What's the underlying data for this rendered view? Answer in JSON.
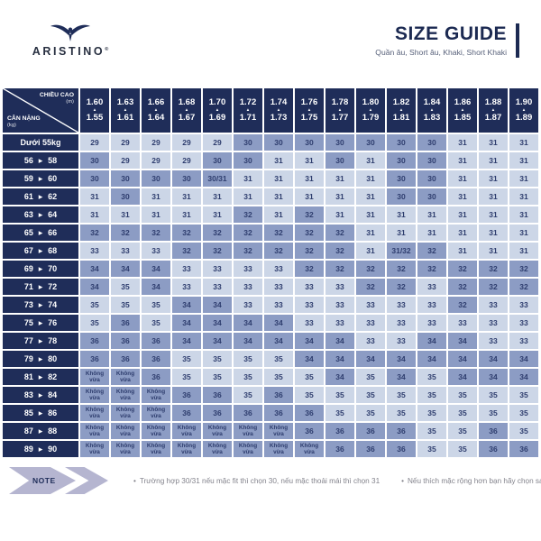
{
  "colors": {
    "navy": "#1f2d59",
    "cell_light": "#ccd6e7",
    "cell_dark": "#8c9cc4",
    "cell_text": "#2e3d6e",
    "note_chevron": "#b5b5d0",
    "note_text": "#83838c"
  },
  "header": {
    "brand": "ARISTINO",
    "reg": "®",
    "title": "SIZE GUIDE",
    "subtitle": "Quần âu, Short âu, Khaki, Short Khaki"
  },
  "table": {
    "corner": {
      "top_label": "CHIỀU CAO",
      "top_unit": "(m)",
      "bottom_label": "CÂN NẶNG",
      "bottom_unit": "(kg)"
    },
    "up_triangle": "▲",
    "range_triangle": "▶",
    "no_fit_text": "Không vừa",
    "height_columns": [
      {
        "tall": "1.60",
        "short": "1.55"
      },
      {
        "tall": "1.63",
        "short": "1.61"
      },
      {
        "tall": "1.66",
        "short": "1.64"
      },
      {
        "tall": "1.68",
        "short": "1.67"
      },
      {
        "tall": "1.70",
        "short": "1.69"
      },
      {
        "tall": "1.72",
        "short": "1.71"
      },
      {
        "tall": "1.74",
        "short": "1.73"
      },
      {
        "tall": "1.76",
        "short": "1.75"
      },
      {
        "tall": "1.78",
        "short": "1.77"
      },
      {
        "tall": "1.80",
        "short": "1.79"
      },
      {
        "tall": "1.82",
        "short": "1.81"
      },
      {
        "tall": "1.84",
        "short": "1.83"
      },
      {
        "tall": "1.86",
        "short": "1.85"
      },
      {
        "tall": "1.88",
        "short": "1.87"
      },
      {
        "tall": "1.90",
        "short": "1.89"
      }
    ],
    "rows": [
      {
        "weight": "Dưới 55kg",
        "values": [
          "29",
          "29",
          "29",
          "29",
          "29",
          "30",
          "30",
          "30",
          "30",
          "30",
          "30",
          "30",
          "31",
          "31",
          "31"
        ],
        "dark": [
          0,
          0,
          0,
          0,
          0,
          1,
          1,
          1,
          1,
          1,
          1,
          1,
          0,
          0,
          0
        ]
      },
      {
        "weight_from": "56",
        "weight_to": "58",
        "values": [
          "30",
          "29",
          "29",
          "29",
          "30",
          "30",
          "31",
          "31",
          "30",
          "31",
          "30",
          "30",
          "31",
          "31",
          "31"
        ],
        "dark": [
          1,
          0,
          0,
          0,
          1,
          1,
          0,
          0,
          1,
          0,
          1,
          1,
          0,
          0,
          0
        ]
      },
      {
        "weight_from": "59",
        "weight_to": "60",
        "values": [
          "30",
          "30",
          "30",
          "30",
          "30/31",
          "31",
          "31",
          "31",
          "31",
          "31",
          "30",
          "30",
          "31",
          "31",
          "31"
        ],
        "dark": [
          1,
          1,
          1,
          1,
          1,
          0,
          0,
          0,
          0,
          0,
          1,
          1,
          0,
          0,
          0
        ]
      },
      {
        "weight_from": "61",
        "weight_to": "62",
        "values": [
          "31",
          "30",
          "31",
          "31",
          "31",
          "31",
          "31",
          "31",
          "31",
          "31",
          "30",
          "30",
          "31",
          "31",
          "31"
        ],
        "dark": [
          0,
          1,
          0,
          0,
          0,
          0,
          0,
          0,
          0,
          0,
          1,
          1,
          0,
          0,
          0
        ]
      },
      {
        "weight_from": "63",
        "weight_to": "64",
        "values": [
          "31",
          "31",
          "31",
          "31",
          "31",
          "32",
          "31",
          "32",
          "31",
          "31",
          "31",
          "31",
          "31",
          "31",
          "31"
        ],
        "dark": [
          0,
          0,
          0,
          0,
          0,
          1,
          0,
          1,
          0,
          0,
          0,
          0,
          0,
          0,
          0
        ]
      },
      {
        "weight_from": "65",
        "weight_to": "66",
        "values": [
          "32",
          "32",
          "32",
          "32",
          "32",
          "32",
          "32",
          "32",
          "32",
          "31",
          "31",
          "31",
          "31",
          "31",
          "31"
        ],
        "dark": [
          1,
          1,
          1,
          1,
          1,
          1,
          1,
          1,
          1,
          0,
          0,
          0,
          0,
          0,
          0
        ]
      },
      {
        "weight_from": "67",
        "weight_to": "68",
        "values": [
          "33",
          "33",
          "33",
          "32",
          "32",
          "32",
          "32",
          "32",
          "32",
          "31",
          "31/32",
          "32",
          "31",
          "31",
          "31"
        ],
        "dark": [
          0,
          0,
          0,
          1,
          1,
          1,
          1,
          1,
          1,
          0,
          1,
          1,
          0,
          0,
          0
        ]
      },
      {
        "weight_from": "69",
        "weight_to": "70",
        "values": [
          "34",
          "34",
          "34",
          "33",
          "33",
          "33",
          "33",
          "32",
          "32",
          "32",
          "32",
          "32",
          "32",
          "32",
          "32"
        ],
        "dark": [
          1,
          1,
          1,
          0,
          0,
          0,
          0,
          1,
          1,
          1,
          1,
          1,
          1,
          1,
          1
        ]
      },
      {
        "weight_from": "71",
        "weight_to": "72",
        "values": [
          "34",
          "35",
          "34",
          "33",
          "33",
          "33",
          "33",
          "33",
          "33",
          "32",
          "32",
          "33",
          "32",
          "32",
          "32"
        ],
        "dark": [
          1,
          0,
          1,
          0,
          0,
          0,
          0,
          0,
          0,
          1,
          1,
          0,
          1,
          1,
          1
        ]
      },
      {
        "weight_from": "73",
        "weight_to": "74",
        "values": [
          "35",
          "35",
          "35",
          "34",
          "34",
          "33",
          "33",
          "33",
          "33",
          "33",
          "33",
          "33",
          "32",
          "33",
          "33"
        ],
        "dark": [
          0,
          0,
          0,
          1,
          1,
          0,
          0,
          0,
          0,
          0,
          0,
          0,
          1,
          0,
          0
        ]
      },
      {
        "weight_from": "75",
        "weight_to": "76",
        "values": [
          "35",
          "36",
          "35",
          "34",
          "34",
          "34",
          "34",
          "33",
          "33",
          "33",
          "33",
          "33",
          "33",
          "33",
          "33"
        ],
        "dark": [
          0,
          1,
          0,
          1,
          1,
          1,
          1,
          0,
          0,
          0,
          0,
          0,
          0,
          0,
          0
        ]
      },
      {
        "weight_from": "77",
        "weight_to": "78",
        "values": [
          "36",
          "36",
          "36",
          "34",
          "34",
          "34",
          "34",
          "34",
          "34",
          "33",
          "33",
          "34",
          "34",
          "33",
          "33"
        ],
        "dark": [
          1,
          1,
          1,
          1,
          1,
          1,
          1,
          1,
          1,
          0,
          0,
          1,
          1,
          0,
          0
        ]
      },
      {
        "weight_from": "79",
        "weight_to": "80",
        "values": [
          "36",
          "36",
          "36",
          "35",
          "35",
          "35",
          "35",
          "34",
          "34",
          "34",
          "34",
          "34",
          "34",
          "34",
          "34"
        ],
        "dark": [
          1,
          1,
          1,
          0,
          0,
          0,
          0,
          1,
          1,
          1,
          1,
          1,
          1,
          1,
          1
        ]
      },
      {
        "weight_from": "81",
        "weight_to": "82",
        "values": [
          "Không vừa",
          "Không vừa",
          "36",
          "35",
          "35",
          "35",
          "35",
          "35",
          "34",
          "35",
          "34",
          "35",
          "34",
          "34",
          "34"
        ],
        "dark": [
          1,
          1,
          1,
          0,
          0,
          0,
          0,
          0,
          1,
          0,
          1,
          0,
          1,
          1,
          1
        ]
      },
      {
        "weight_from": "83",
        "weight_to": "84",
        "values": [
          "Không vừa",
          "Không vừa",
          "Không vừa",
          "36",
          "36",
          "35",
          "36",
          "35",
          "35",
          "35",
          "35",
          "35",
          "35",
          "35",
          "35"
        ],
        "dark": [
          1,
          1,
          1,
          1,
          1,
          0,
          1,
          0,
          0,
          0,
          0,
          0,
          0,
          0,
          0
        ]
      },
      {
        "weight_from": "85",
        "weight_to": "86",
        "values": [
          "Không vừa",
          "Không vừa",
          "Không vừa",
          "36",
          "36",
          "36",
          "36",
          "36",
          "35",
          "35",
          "35",
          "35",
          "35",
          "35",
          "35"
        ],
        "dark": [
          1,
          1,
          1,
          1,
          1,
          1,
          1,
          1,
          0,
          0,
          0,
          0,
          0,
          0,
          0
        ]
      },
      {
        "weight_from": "87",
        "weight_to": "88",
        "values": [
          "Không vừa",
          "Không vừa",
          "Không vừa",
          "Không vừa",
          "Không vừa",
          "Không vừa",
          "Không vừa",
          "36",
          "36",
          "36",
          "36",
          "35",
          "35",
          "36",
          "35"
        ],
        "dark": [
          1,
          1,
          1,
          1,
          1,
          1,
          1,
          1,
          1,
          1,
          1,
          0,
          0,
          1,
          0
        ]
      },
      {
        "weight_from": "89",
        "weight_to": "90",
        "values": [
          "Không vừa",
          "Không vừa",
          "Không vừa",
          "Không vừa",
          "Không vừa",
          "Không vừa",
          "Không vừa",
          "Không vừa",
          "36",
          "36",
          "36",
          "35",
          "35",
          "36",
          "36"
        ],
        "dark": [
          1,
          1,
          1,
          1,
          1,
          1,
          1,
          1,
          1,
          1,
          1,
          0,
          0,
          1,
          1
        ]
      }
    ]
  },
  "note": {
    "label": "NOTE",
    "bullet": "•",
    "items": [
      "Trường hợp 30/31 nếu mặc fit thì chọn 30, nếu mặc thoải mái thì chọn 31",
      "Nếu thích mặc rộng hơn bạn hãy chọn sang regular cùng size."
    ]
  }
}
